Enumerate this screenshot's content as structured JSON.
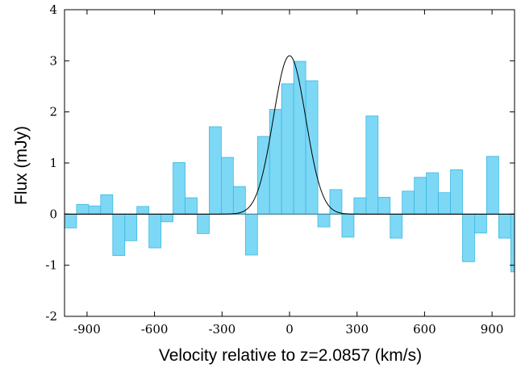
{
  "chart_data": {
    "type": "bar",
    "title": "",
    "xlabel": "Velocity relative to z=2.0857 (km/s)",
    "ylabel": "Flux (mJy)",
    "xlim": [
      -1000,
      1000
    ],
    "ylim": [
      -2,
      4
    ],
    "xticks": [
      -900,
      -600,
      -300,
      0,
      300,
      600,
      900
    ],
    "yticks": [
      -2,
      -1,
      0,
      1,
      2,
      3,
      4
    ],
    "xtick_labels": [
      "-900",
      "-600",
      "-300",
      "0",
      "300",
      "600",
      "900"
    ],
    "ytick_labels": [
      "-2",
      "-1",
      "0",
      "1",
      "2",
      "3",
      "4"
    ],
    "grid": false,
    "bar_color": "#7dd8f5",
    "bar_edge_color": "#3bb8e0",
    "fit_color": "#000000",
    "bin_width": 53.6,
    "bin_start": -1000,
    "values": [
      -0.27,
      0.19,
      0.16,
      0.38,
      -0.81,
      -0.52,
      0.15,
      -0.66,
      -0.15,
      1.01,
      0.32,
      -0.38,
      1.71,
      1.11,
      0.54,
      -0.8,
      1.52,
      2.05,
      2.55,
      2.99,
      2.61,
      -0.25,
      0.48,
      -0.45,
      0.32,
      1.92,
      0.33,
      -0.47,
      0.45,
      0.72,
      0.81,
      0.42,
      0.87,
      -0.93,
      -0.37,
      1.13,
      -0.47,
      -1.13
    ],
    "gaussian_fit": {
      "amplitude": 3.1,
      "center": 0,
      "sigma": 72
    }
  }
}
